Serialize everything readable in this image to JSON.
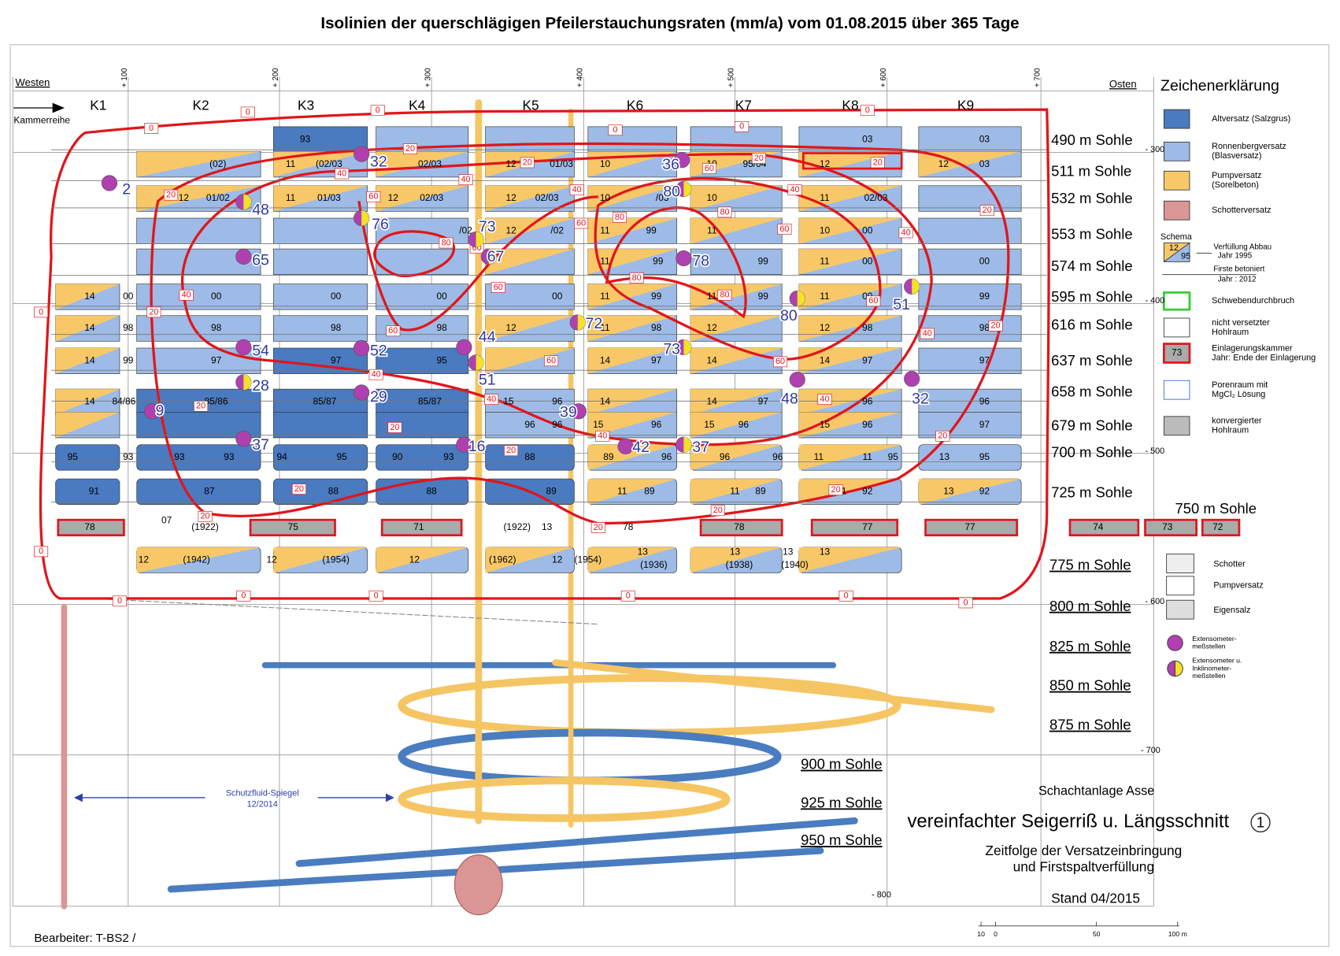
{
  "title": "Isolinien der querschlägigen Pfeilerstauchungsraten (mm/a) vom 01.08.2015 über 365 Tage",
  "header": {
    "west": "Westen",
    "east": "Osten",
    "row_label": "Kammerreihe",
    "columns": [
      "K1",
      "K2",
      "K3",
      "K4",
      "K5",
      "K6",
      "K7",
      "K8",
      "K9"
    ]
  },
  "horizontal_ticks": [
    "+ 100",
    "+ 200",
    "+ 300",
    "+ 400",
    "+ 500",
    "+ 600",
    "+ 700"
  ],
  "depth_ticks": [
    "- 300",
    "- 400",
    "- 500",
    "- 600",
    "- 700",
    "- 800"
  ],
  "levels": [
    "490 m Sohle",
    "511 m Sohle",
    "532 m Sohle",
    "553 m Sohle",
    "574 m Sohle",
    "595 m Sohle",
    "616 m Sohle",
    "637 m Sohle",
    "658 m Sohle",
    "679 m Sohle",
    "700 m Sohle",
    "725 m Sohle",
    "750 m Sohle",
    "775 m Sohle",
    "800 m Sohle",
    "825 m Sohle",
    "850 m Sohle",
    "875 m Sohle",
    "900 m Sohle",
    "925 m Sohle",
    "950 m Sohle"
  ],
  "chamber_rows": [
    [
      "93",
      "03",
      "03"
    ],
    [
      "(02)",
      "11",
      "(02/03",
      "02/03",
      "12",
      "01/03",
      "10",
      "10",
      "95/04",
      "12",
      "12",
      "03"
    ],
    [
      "12",
      "01/02",
      "11",
      "01/03",
      "12",
      "02/03",
      "12",
      "02/03",
      "10",
      "/03",
      "10",
      "11",
      "02/03"
    ],
    [
      "/02",
      "12",
      "/02",
      "11",
      "99",
      "11",
      "10",
      "00"
    ],
    [
      "11",
      "99",
      "99",
      "11",
      "00",
      "00"
    ],
    [
      "14",
      "00",
      "00",
      "00",
      "00",
      "00",
      "11",
      "99",
      "11",
      "99",
      "11",
      "00",
      "99"
    ],
    [
      "14",
      "98",
      "98",
      "98",
      "98",
      "12",
      "11",
      "98",
      "12",
      "12",
      "98",
      "98"
    ],
    [
      "14",
      "99",
      "97",
      "97",
      "95",
      "14",
      "97",
      "14",
      "14",
      "97",
      "97"
    ],
    [
      "14",
      "84/86",
      "85/86",
      "85/87",
      "85/87",
      "15",
      "96",
      "14",
      "14",
      "97",
      "14",
      "96",
      "96"
    ],
    [
      "96",
      "96",
      "15",
      "96",
      "15",
      "96",
      "15",
      "96",
      "97"
    ],
    [
      "95",
      "93",
      "93",
      "93",
      "94",
      "95",
      "90",
      "93",
      "88",
      "89",
      "96",
      "96",
      "96",
      "11",
      "11",
      "95",
      "13",
      "95"
    ],
    [
      "91",
      "87",
      "88",
      "88",
      "89",
      "11",
      "89",
      "11",
      "89",
      "11",
      "92",
      "13",
      "92"
    ],
    [
      "78",
      "07",
      "(1922)",
      "75",
      "71",
      "(1922)",
      "13",
      "78",
      "78",
      "77",
      "77",
      "74",
      "73",
      "72"
    ],
    [
      "12",
      "(1942)",
      "12",
      "(1954)",
      "12",
      "(1962)",
      "12",
      "(1954)",
      "13",
      "(1936)",
      "13",
      "(1938)",
      "13",
      "(1940)",
      "13"
    ]
  ],
  "isoline_labels": [
    0,
    0,
    0,
    0,
    0,
    0,
    0,
    0,
    0,
    0,
    0,
    0,
    0,
    0,
    20,
    20,
    20,
    20,
    20,
    20,
    20,
    20,
    20,
    20,
    20,
    20,
    20,
    20,
    20,
    20,
    20,
    40,
    40,
    40,
    40,
    40,
    40,
    40,
    40,
    40,
    40,
    40,
    60,
    60,
    60,
    60,
    60,
    60,
    60,
    60,
    60,
    60,
    80,
    80,
    80,
    80,
    80
  ],
  "measurement_points": [
    2,
    32,
    48,
    76,
    65,
    73,
    67,
    36,
    80,
    78,
    51,
    72,
    80,
    73,
    44,
    51,
    52,
    54,
    28,
    29,
    9,
    37,
    16,
    39,
    42,
    37,
    48,
    32
  ],
  "legend": {
    "title": "Zeichenerklärung",
    "items": [
      [
        "Altversatz (Salzgrus)"
      ],
      [
        "Ronnenbergversatz",
        "(Blasversatz)"
      ],
      [
        "Pumpversatz",
        "(Sorelbeton)"
      ],
      [
        "Schotterversatz"
      ],
      [
        "Schwebendurchbruch"
      ],
      [
        "nicht versetzter",
        "Hohlraum"
      ],
      [
        "Einlagerungskammer",
        "Jahr: Ende der Einlagerung"
      ],
      [
        "Porenraum mit",
        "MgCl₂ Lösung"
      ],
      [
        "konvergierter",
        "Hohlraum"
      ],
      [
        "Schotter"
      ],
      [
        "Pumpversatz"
      ],
      [
        "Eigensalz"
      ],
      [
        "Extensometer-",
        "meßstellen"
      ],
      [
        "Extensometer u.",
        "Inklinometer-",
        "meßstellen"
      ]
    ],
    "chamber_sample": "73",
    "schema": {
      "title": "Schema",
      "fill_year": "12",
      "roof_year": "95",
      "lines": [
        "Verfüllung Abbau",
        "Jahr 1995",
        "Firste betoniert",
        "Jahr : 2012"
      ]
    }
  },
  "annotation": {
    "text": "Schutzfluid-Spiegel",
    "date": "12/2014"
  },
  "info": {
    "site": "Schachtanlage Asse",
    "drawing": "vereinfachter Seigerriß u. Längsschnitt",
    "number": "1",
    "subtitle": [
      "Zeitfolge der  Versatzeinbringung",
      "und Firstspaltverfüllung"
    ],
    "status": "Stand 04/2015"
  },
  "scale_labels": [
    "10",
    "0",
    "50",
    "100 m"
  ],
  "footer": "Bearbeiter: T-BS2 /"
}
